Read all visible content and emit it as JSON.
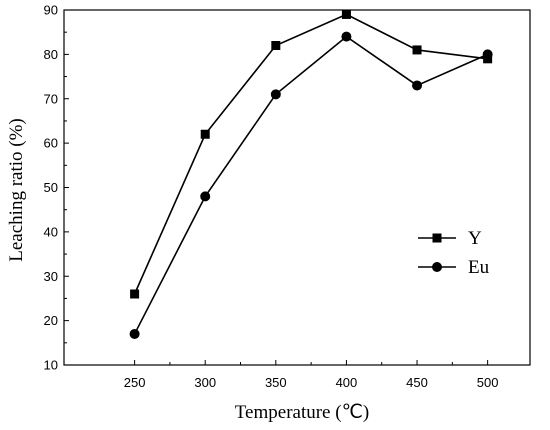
{
  "chart_data": {
    "type": "line",
    "xlabel": "Temperature (℃)",
    "ylabel": "Leaching ratio (%)",
    "x": [
      250,
      300,
      350,
      400,
      450,
      500
    ],
    "xlim": [
      200,
      530
    ],
    "ylim": [
      10,
      90
    ],
    "xticks": [
      250,
      300,
      350,
      400,
      450,
      500
    ],
    "yticks": [
      10,
      20,
      30,
      40,
      50,
      60,
      70,
      80,
      90
    ],
    "grid": false,
    "legend_position": "center-right",
    "series": [
      {
        "name": "Y",
        "marker": "square",
        "color": "#000000",
        "values": [
          26,
          62,
          82,
          89,
          81,
          79
        ]
      },
      {
        "name": "Eu",
        "marker": "circle",
        "color": "#000000",
        "values": [
          17,
          48,
          71,
          84,
          73,
          80
        ]
      }
    ]
  }
}
